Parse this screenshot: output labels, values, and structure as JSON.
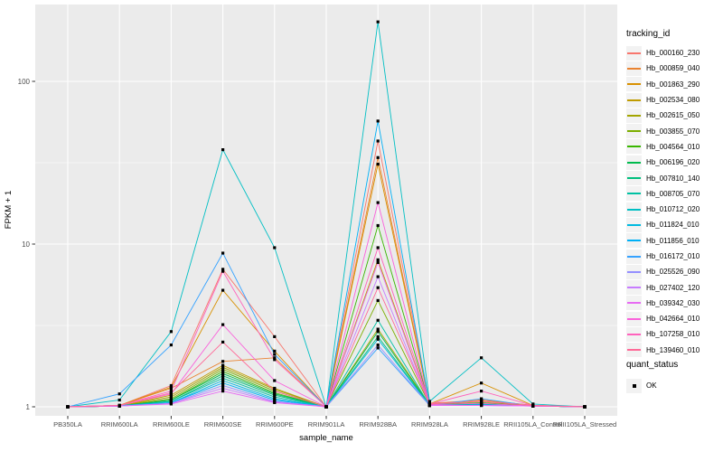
{
  "chart_data": {
    "type": "line",
    "title": "",
    "xlabel": "sample_name",
    "ylabel": "FPKM + 1",
    "y_scale": "log10",
    "ylim": [
      1,
      300
    ],
    "y_ticks": [
      1,
      10,
      100
    ],
    "y_tick_labels": [
      "1",
      "10",
      "100"
    ],
    "grid": true,
    "legend_position": "right",
    "legend_title": "tracking_id",
    "colors": {
      "panel_bg": "#EBEBEB",
      "grid": "#FFFFFF",
      "tick_label": "#4D4D4D",
      "axis_title": "#000000",
      "marker": "#000000",
      "legend_key_bg": "#F2F2F2"
    },
    "categories": [
      "PB350LA",
      "RRIM600LA",
      "RRIM600LE",
      "RRIM600SE",
      "RRIM600PE",
      "RRIM901LA",
      "RRIM928BA",
      "RRIM928LA",
      "RRIM928LE",
      "RRII105LA_Control",
      "RRII105LA_Stressed"
    ],
    "series": [
      {
        "name": "Hb_000160_230",
        "color": "#F8766D",
        "values": [
          1,
          1.02,
          1.35,
          7.0,
          2.7,
          1,
          43,
          1.05,
          1.1,
          1.02,
          1
        ]
      },
      {
        "name": "Hb_000859_040",
        "color": "#EA8331",
        "values": [
          1,
          1.02,
          1.3,
          1.9,
          2.0,
          1,
          34,
          1.04,
          1.1,
          1.02,
          1
        ]
      },
      {
        "name": "Hb_001863_290",
        "color": "#D89000",
        "values": [
          1,
          1.02,
          1.32,
          5.2,
          2.2,
          1,
          31,
          1.04,
          1.4,
          1.02,
          1
        ]
      },
      {
        "name": "Hb_002534_080",
        "color": "#C09B00",
        "values": [
          1,
          1.01,
          1.18,
          1.8,
          1.3,
          1,
          8.0,
          1.03,
          1.08,
          1.01,
          1
        ]
      },
      {
        "name": "Hb_002615_050",
        "color": "#A3A500",
        "values": [
          1,
          1.01,
          1.15,
          1.75,
          1.28,
          1,
          3.0,
          1.03,
          1.05,
          1.01,
          1
        ]
      },
      {
        "name": "Hb_003855_070",
        "color": "#7CAE00",
        "values": [
          1,
          1.01,
          1.12,
          1.7,
          1.25,
          1,
          4.5,
          1.03,
          1.05,
          1.01,
          1
        ]
      },
      {
        "name": "Hb_004564_010",
        "color": "#39B600",
        "values": [
          1,
          1.01,
          1.1,
          1.65,
          1.22,
          1,
          13,
          1.03,
          1.06,
          1.01,
          1
        ]
      },
      {
        "name": "Hb_006196_020",
        "color": "#00BB4E",
        "values": [
          1,
          1.01,
          1.1,
          1.6,
          1.2,
          1,
          2.9,
          1.02,
          1.04,
          1.01,
          1
        ]
      },
      {
        "name": "Hb_007810_140",
        "color": "#00BF7D",
        "values": [
          1,
          1.01,
          1.08,
          1.55,
          1.18,
          1,
          2.7,
          1.02,
          1.04,
          1.01,
          1
        ]
      },
      {
        "name": "Hb_008705_070",
        "color": "#00C1A3",
        "values": [
          1,
          1.01,
          1.08,
          1.5,
          1.15,
          1,
          3.4,
          1.02,
          1.03,
          1.01,
          1
        ]
      },
      {
        "name": "Hb_010712_020",
        "color": "#00BFC4",
        "values": [
          1,
          1.1,
          2.9,
          38,
          9.5,
          1,
          232,
          1.08,
          2.0,
          1.04,
          1
        ]
      },
      {
        "name": "Hb_011824_010",
        "color": "#00BAE0",
        "values": [
          1,
          1.01,
          1.06,
          1.45,
          1.12,
          1,
          2.6,
          1.02,
          1.03,
          1.01,
          1
        ]
      },
      {
        "name": "Hb_011856_010",
        "color": "#00B0F6",
        "values": [
          1,
          1.02,
          1.06,
          1.4,
          1.1,
          1,
          57,
          1.02,
          1.03,
          1.01,
          1
        ]
      },
      {
        "name": "Hb_016172_010",
        "color": "#35A2FF",
        "values": [
          1,
          1.2,
          2.4,
          8.8,
          2.1,
          1,
          2.3,
          1.02,
          1.12,
          1.01,
          1
        ]
      },
      {
        "name": "Hb_025526_090",
        "color": "#9590FF",
        "values": [
          1,
          1.01,
          1.05,
          1.35,
          1.08,
          1,
          2.4,
          1.02,
          1.02,
          1.01,
          1
        ]
      },
      {
        "name": "Hb_027402_120",
        "color": "#C77CFF",
        "values": [
          1,
          1.01,
          1.05,
          1.3,
          1.07,
          1,
          6.3,
          1.02,
          1.02,
          1.01,
          1
        ]
      },
      {
        "name": "Hb_039342_030",
        "color": "#E76BF3",
        "values": [
          1,
          1.01,
          1.04,
          1.25,
          1.06,
          1,
          7.7,
          1.02,
          1.02,
          1.01,
          1
        ]
      },
      {
        "name": "Hb_042664_010",
        "color": "#FA62DB",
        "values": [
          1,
          1.02,
          1.2,
          3.2,
          1.45,
          1,
          18,
          1.03,
          1.05,
          1.01,
          1
        ]
      },
      {
        "name": "Hb_107258_010",
        "color": "#FF62BC",
        "values": [
          1,
          1.02,
          1.25,
          6.8,
          1.95,
          1,
          9.5,
          1.04,
          1.25,
          1.02,
          1
        ]
      },
      {
        "name": "Hb_139460_010",
        "color": "#FF6A98",
        "values": [
          1,
          1.02,
          1.22,
          2.5,
          1.25,
          1,
          5.4,
          1.04,
          1.08,
          1.02,
          1
        ]
      }
    ],
    "quant_legend": {
      "title": "quant_status",
      "items": [
        {
          "label": "OK",
          "marker_color": "#000000"
        }
      ]
    }
  }
}
